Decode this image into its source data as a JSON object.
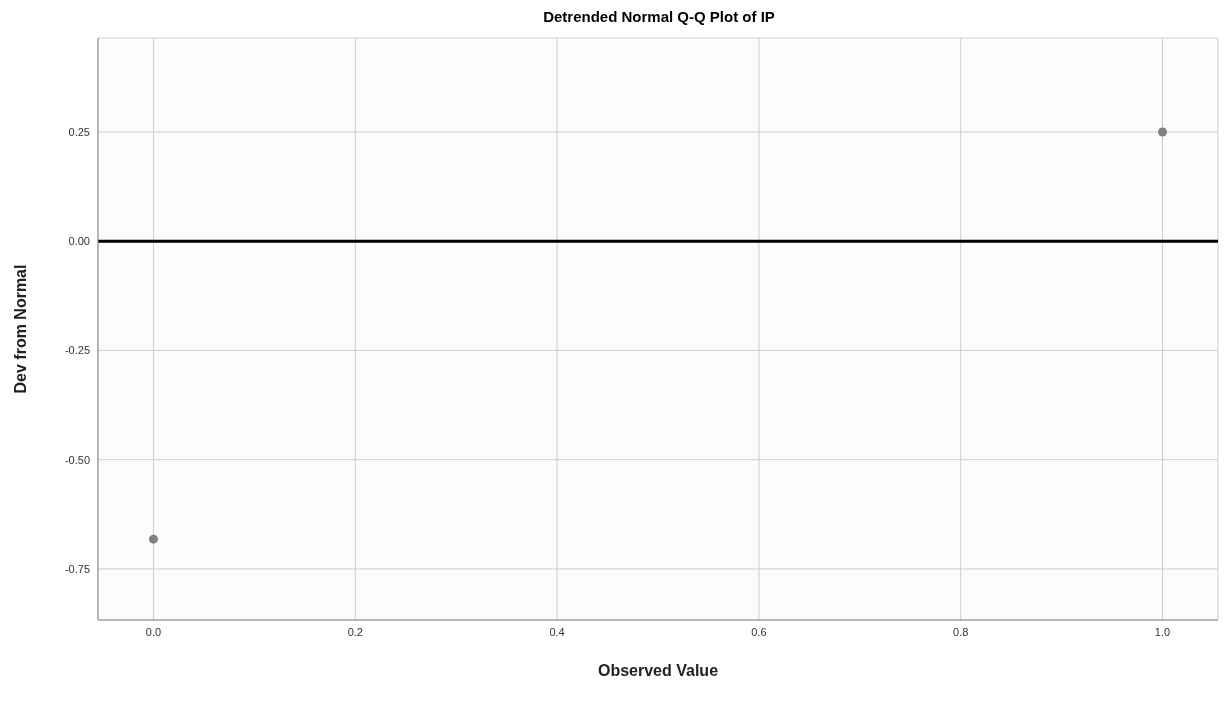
{
  "chart_data": {
    "type": "scatter",
    "title": "Detrended Normal Q-Q Plot of IP",
    "xlabel": "Observed Value",
    "ylabel": "Dev from Normal",
    "x": [
      0,
      1
    ],
    "series": [
      {
        "color": "#808080",
        "values": [
          -0.682,
          0.25
        ]
      }
    ],
    "xlim": [
      -0.055,
      1.055
    ],
    "ylim": [
      -0.867,
      0.465
    ],
    "xticks": [
      {
        "value": 0,
        "label": "0.0"
      },
      {
        "value": 0.2,
        "label": "0.2"
      },
      {
        "value": 0.4,
        "label": "0.4"
      },
      {
        "value": 0.6,
        "label": "0.6"
      },
      {
        "value": 0.8,
        "label": "0.8"
      },
      {
        "value": 1,
        "label": "1.0"
      }
    ],
    "yticks": [
      {
        "value": -0.75,
        "label": "-0.75"
      },
      {
        "value": -0.5,
        "label": "-0.50"
      },
      {
        "value": -0.25,
        "label": "-0.25"
      },
      {
        "value": 0,
        "label": "0.00"
      },
      {
        "value": 0.25,
        "label": "0.25"
      }
    ],
    "ref_lines": [
      {
        "axis": "y",
        "value": 0,
        "color": "#000000"
      }
    ],
    "grid": true,
    "marker": "circle"
  }
}
